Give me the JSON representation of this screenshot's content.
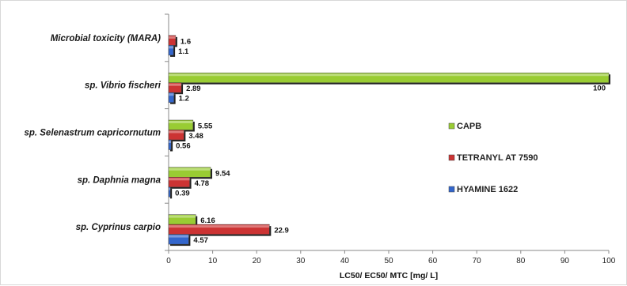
{
  "chart_data": {
    "type": "bar",
    "orientation": "horizontal",
    "categories": [
      "Microbial toxicity (MARA)",
      "sp. Vibrio fischeri",
      "sp. Selenastrum capricornutum",
      "sp. Daphnia magna",
      "sp. Cyprinus carpio"
    ],
    "series": [
      {
        "name": "CAPB",
        "color": "#99cc33",
        "values": [
          null,
          100,
          5.55,
          9.54,
          6.16
        ],
        "labels": [
          "",
          "100",
          "5.55",
          "9.54",
          "6.16"
        ]
      },
      {
        "name": "TETRANYL AT 7590",
        "color": "#cc3333",
        "values": [
          1.6,
          2.89,
          3.48,
          4.78,
          22.9
        ],
        "labels": [
          "1.6",
          "2.89",
          "3.48",
          "4.78",
          "22.9"
        ]
      },
      {
        "name": "HYAMINE 1622",
        "color": "#3366cc",
        "values": [
          1.1,
          1.2,
          0.56,
          0.39,
          4.57
        ],
        "labels": [
          "1.1",
          "1.2",
          "0.56",
          "0.39",
          "4.57"
        ]
      }
    ],
    "xlabel": "LC50/ EC50/ MTC [mg/ L]",
    "xlim": [
      0,
      100
    ],
    "xticks": [
      0,
      10,
      20,
      30,
      40,
      50,
      60,
      70,
      80,
      90,
      100
    ],
    "grid": false,
    "legend_position": "right"
  }
}
